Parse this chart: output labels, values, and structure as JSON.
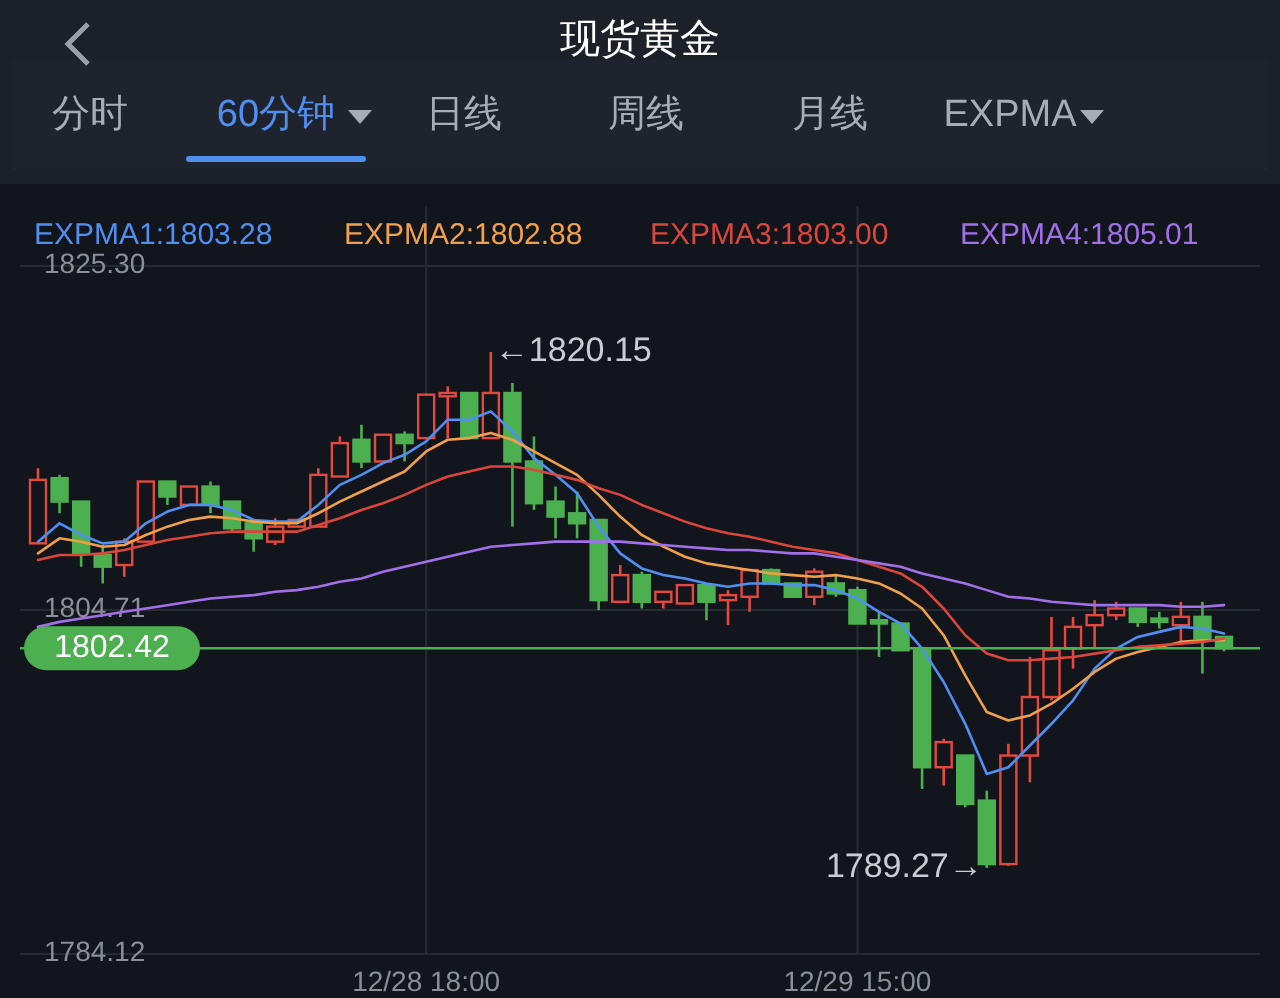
{
  "chart_data": {
    "type": "candlestick",
    "title": "现货黄金",
    "categories": [
      null,
      null,
      null,
      null,
      null,
      null,
      null,
      null,
      null,
      null,
      null,
      null,
      null,
      null,
      null,
      null,
      null,
      null,
      "12/28 18:00",
      null,
      null,
      null,
      null,
      null,
      null,
      null,
      null,
      null,
      null,
      null,
      null,
      null,
      null,
      null,
      null,
      null,
      null,
      null,
      "12/29 15:00",
      null,
      null,
      null,
      null,
      null,
      null,
      null,
      null,
      null,
      null,
      null,
      null,
      null,
      null,
      null,
      null,
      null
    ],
    "ohlc": [
      [
        1808.7,
        1813.2,
        1808.7,
        1812.5
      ],
      [
        1812.6,
        1812.8,
        1810.5,
        1811.2
      ],
      [
        1811.2,
        1811.2,
        1807.3,
        1808.1
      ],
      [
        1808.0,
        1808.6,
        1806.3,
        1807.3
      ],
      [
        1807.4,
        1809.0,
        1806.7,
        1808.8
      ],
      [
        1808.8,
        1812.4,
        1808.8,
        1812.4
      ],
      [
        1812.4,
        1812.4,
        1811.0,
        1811.5
      ],
      [
        1811.0,
        1812.1,
        1811.0,
        1812.1
      ],
      [
        1812.1,
        1812.4,
        1810.5,
        1811.0
      ],
      [
        1811.2,
        1811.2,
        1809.4,
        1809.6
      ],
      [
        1809.9,
        1809.9,
        1808.2,
        1809.0
      ],
      [
        1808.8,
        1810.2,
        1808.6,
        1809.7
      ],
      [
        1809.7,
        1810.1,
        1809.7,
        1810.1
      ],
      [
        1809.7,
        1813.2,
        1809.7,
        1812.8
      ],
      [
        1812.7,
        1815.1,
        1812.7,
        1814.7
      ],
      [
        1814.9,
        1815.8,
        1813.2,
        1813.6
      ],
      [
        1813.6,
        1815.2,
        1813.6,
        1815.2
      ],
      [
        1815.2,
        1815.4,
        1813.6,
        1814.7
      ],
      [
        1815.0,
        1817.6,
        1815.0,
        1817.6
      ],
      [
        1817.5,
        1818.1,
        1815.0,
        1817.7
      ],
      [
        1817.7,
        1817.7,
        1815.0,
        1815.0
      ],
      [
        1815.0,
        1820.15,
        1815.0,
        1817.7
      ],
      [
        1817.7,
        1818.3,
        1809.7,
        1813.6
      ],
      [
        1813.6,
        1815.1,
        1810.7,
        1811.1
      ],
      [
        1811.2,
        1812.1,
        1809.0,
        1810.3
      ],
      [
        1810.5,
        1811.8,
        1809.0,
        1809.9
      ],
      [
        1810.1,
        1810.1,
        1804.7,
        1805.3
      ],
      [
        1805.2,
        1807.4,
        1805.2,
        1806.8
      ],
      [
        1806.8,
        1807.0,
        1804.8,
        1805.2
      ],
      [
        1805.2,
        1805.8,
        1804.8,
        1805.8
      ],
      [
        1805.1,
        1806.2,
        1805.1,
        1806.2
      ],
      [
        1806.2,
        1806.2,
        1804.1,
        1805.2
      ],
      [
        1805.3,
        1805.9,
        1803.8,
        1805.6
      ],
      [
        1805.5,
        1807.1,
        1804.6,
        1807.1
      ],
      [
        1807.1,
        1807.2,
        1806.3,
        1806.3
      ],
      [
        1806.3,
        1806.3,
        1805.5,
        1805.5
      ],
      [
        1805.5,
        1807.2,
        1805.0,
        1807.0
      ],
      [
        1806.3,
        1806.8,
        1805.5,
        1805.7
      ],
      [
        1805.9,
        1806.1,
        1803.9,
        1803.9
      ],
      [
        1804.1,
        1804.6,
        1801.9,
        1803.9
      ],
      [
        1803.9,
        1803.9,
        1802.3,
        1802.3
      ],
      [
        1802.4,
        1802.4,
        1794.0,
        1795.3
      ],
      [
        1795.3,
        1797.0,
        1794.2,
        1796.8
      ],
      [
        1796.0,
        1796.0,
        1792.9,
        1793.1
      ],
      [
        1793.3,
        1793.9,
        1789.27,
        1789.5
      ],
      [
        1789.5,
        1796.7,
        1789.4,
        1796.0
      ],
      [
        1796.0,
        1801.9,
        1794.4,
        1799.5
      ],
      [
        1799.5,
        1804.3,
        1799.3,
        1802.3
      ],
      [
        1802.4,
        1804.3,
        1801.2,
        1803.7
      ],
      [
        1803.8,
        1805.3,
        1802.4,
        1804.4
      ],
      [
        1804.4,
        1805.2,
        1804.1,
        1804.8
      ],
      [
        1804.8,
        1804.8,
        1803.7,
        1804.0
      ],
      [
        1804.2,
        1804.6,
        1803.6,
        1804.0
      ],
      [
        1803.8,
        1805.2,
        1802.6,
        1804.3
      ],
      [
        1804.3,
        1805.2,
        1800.9,
        1803.0
      ],
      [
        1803.1,
        1803.1,
        1802.24,
        1802.42
      ]
    ],
    "colors": [
      "#e5483e",
      "#4caf50",
      "#4caf50",
      "#4caf50",
      "#e5483e",
      "#e5483e",
      "#4caf50",
      "#e5483e",
      "#4caf50",
      "#4caf50",
      "#4caf50",
      "#e5483e",
      "#e5483e",
      "#e5483e",
      "#e5483e",
      "#4caf50",
      "#e5483e",
      "#4caf50",
      "#e5483e",
      "#e5483e",
      "#4caf50",
      "#e5483e",
      "#4caf50",
      "#4caf50",
      "#4caf50",
      "#4caf50",
      "#4caf50",
      "#e5483e",
      "#4caf50",
      "#e5483e",
      "#e5483e",
      "#4caf50",
      "#e5483e",
      "#e5483e",
      "#4caf50",
      "#4caf50",
      "#e5483e",
      "#4caf50",
      "#4caf50",
      "#4caf50",
      "#4caf50",
      "#4caf50",
      "#e5483e",
      "#4caf50",
      "#4caf50",
      "#e5483e",
      "#e5483e",
      "#e5483e",
      "#e5483e",
      "#e5483e",
      "#e5483e",
      "#4caf50",
      "#4caf50",
      "#e5483e",
      "#4caf50",
      "#4caf50"
    ],
    "series": [
      {
        "type": "line",
        "name": "EXPMA1:1803.28",
        "color": "#4f8ff0",
        "values": [
          1808.8,
          1809.9,
          1809.2,
          1808.7,
          1808.8,
          1809.9,
          1810.6,
          1811.0,
          1811.0,
          1810.7,
          1810.1,
          1810.0,
          1810.0,
          1811.0,
          1812.2,
          1812.8,
          1813.5,
          1814.0,
          1814.8,
          1816.1,
          1816.1,
          1816.6,
          1815.4,
          1813.8,
          1812.8,
          1811.7,
          1809.7,
          1808.1,
          1807.2,
          1806.8,
          1806.6,
          1806.3,
          1806.1,
          1806.3,
          1806.3,
          1806.2,
          1806.2,
          1805.9,
          1805.4,
          1804.6,
          1803.9,
          1802.4,
          1800.4,
          1797.9,
          1794.9,
          1795.3,
          1796.6,
          1797.9,
          1799.3,
          1801.2,
          1802.4,
          1803.1,
          1803.4,
          1803.7,
          1803.6,
          1803.3
        ]
      },
      {
        "type": "line",
        "name": "EXPMA2:1802.88",
        "color": "#f0a04b",
        "values": [
          1808.1,
          1809.0,
          1808.8,
          1808.5,
          1808.6,
          1809.2,
          1809.7,
          1810.1,
          1810.3,
          1810.2,
          1810.0,
          1809.9,
          1809.9,
          1810.5,
          1811.2,
          1811.8,
          1812.4,
          1813.0,
          1814.2,
          1814.9,
          1815.0,
          1815.3,
          1814.9,
          1814.2,
          1813.5,
          1812.8,
          1811.6,
          1810.3,
          1809.2,
          1808.5,
          1807.9,
          1807.5,
          1807.3,
          1807.1,
          1806.9,
          1806.8,
          1806.7,
          1806.8,
          1806.6,
          1806.3,
          1805.7,
          1804.8,
          1803.2,
          1800.8,
          1798.6,
          1798.1,
          1798.4,
          1799.1,
          1800.0,
          1801.0,
          1801.8,
          1802.2,
          1802.5,
          1802.8,
          1802.9,
          1802.9
        ]
      },
      {
        "type": "line",
        "name": "EXPMA3:1803.00",
        "color": "#d9463b",
        "values": [
          1807.7,
          1808.0,
          1808.0,
          1808.1,
          1808.3,
          1808.6,
          1808.9,
          1809.1,
          1809.3,
          1809.4,
          1809.4,
          1809.4,
          1809.4,
          1809.8,
          1810.2,
          1810.7,
          1811.1,
          1811.6,
          1812.2,
          1812.7,
          1813.0,
          1813.3,
          1813.3,
          1813.1,
          1812.8,
          1812.5,
          1812.0,
          1811.6,
          1811.0,
          1810.5,
          1810.0,
          1809.6,
          1809.3,
          1809.1,
          1808.8,
          1808.5,
          1808.3,
          1808.1,
          1807.7,
          1807.3,
          1806.9,
          1806.1,
          1804.8,
          1803.2,
          1802.1,
          1801.7,
          1801.7,
          1801.8,
          1801.9,
          1802.1,
          1802.3,
          1802.5,
          1802.6,
          1802.7,
          1802.8,
          1803.0
        ]
      },
      {
        "type": "line",
        "name": "EXPMA4:1805.01",
        "color": "#a070e8",
        "values": [
          1803.7,
          1804.0,
          1804.2,
          1804.4,
          1804.6,
          1804.8,
          1805.0,
          1805.2,
          1805.4,
          1805.5,
          1805.6,
          1805.8,
          1805.9,
          1806.1,
          1806.4,
          1806.6,
          1807.0,
          1807.3,
          1807.6,
          1807.9,
          1808.2,
          1808.5,
          1808.6,
          1808.7,
          1808.8,
          1808.8,
          1808.8,
          1808.8,
          1808.7,
          1808.6,
          1808.5,
          1808.4,
          1808.3,
          1808.3,
          1808.2,
          1808.1,
          1808.1,
          1807.9,
          1807.7,
          1807.5,
          1807.3,
          1806.9,
          1806.6,
          1806.3,
          1805.9,
          1805.5,
          1805.4,
          1805.2,
          1805.1,
          1805.0,
          1805.0,
          1805.0,
          1805.0,
          1804.9,
          1804.9,
          1805.0
        ]
      }
    ],
    "ylim": [
      1784.12,
      1825.3
    ],
    "yticks": [
      {
        "value": 1825.3,
        "label": "1825.30"
      },
      {
        "value": 1804.71,
        "label": "1804.71"
      },
      {
        "value": 1784.12,
        "label": "1784.12"
      }
    ],
    "grid": true,
    "legend": "top",
    "ref_lines": [
      {
        "axis": "y",
        "value": 1802.42,
        "label": "1802.42",
        "color": "#4caf50"
      }
    ],
    "annotations": [
      "分时",
      "60分钟",
      "日线",
      "周线",
      "月线",
      "EXPMA",
      "←1820.15",
      "1789.27→"
    ]
  }
}
